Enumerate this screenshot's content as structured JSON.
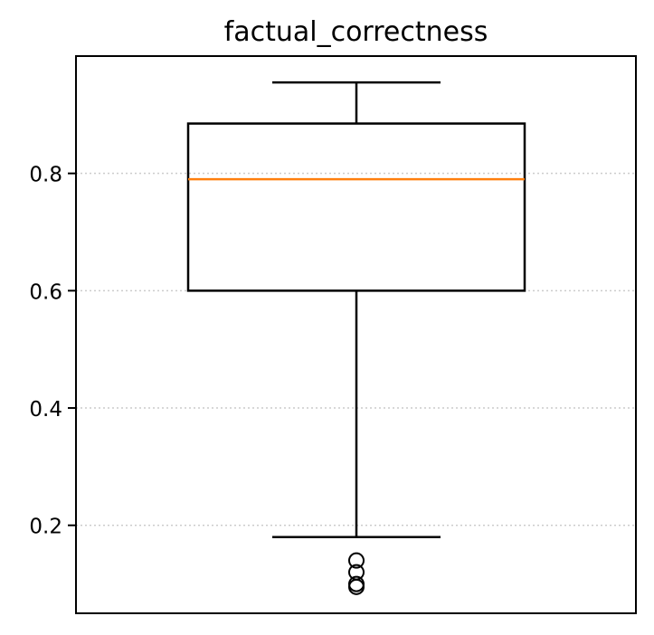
{
  "chart_data": {
    "type": "box",
    "title": "factual_correctness",
    "xlabel": "",
    "ylabel": "",
    "ylim": [
      0.05,
      1.0
    ],
    "y_ticks": [
      0.2,
      0.4,
      0.6,
      0.8
    ],
    "y_tick_labels": [
      "0.2",
      "0.4",
      "0.6",
      "0.8"
    ],
    "grid": "y-dotted",
    "box": {
      "whisker_low": 0.18,
      "q1": 0.6,
      "median": 0.79,
      "q3": 0.885,
      "whisker_high": 0.955
    },
    "outliers": [
      0.14,
      0.12,
      0.1,
      0.095
    ],
    "colors": {
      "box": "#000000",
      "median": "#ff7f0e",
      "grid": "#cccccc"
    }
  }
}
